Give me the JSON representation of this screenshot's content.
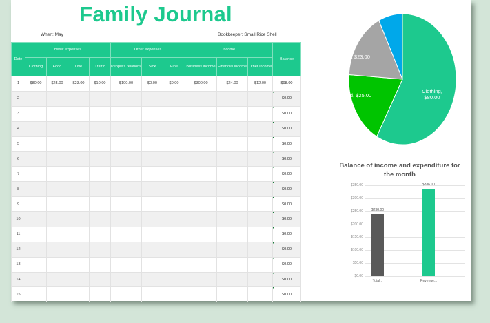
{
  "title": "Family Journal",
  "meta": {
    "when": "When: May",
    "bookkeeper": "Bookkeeper: Small Rice Shell"
  },
  "table": {
    "date_header": "Date",
    "groups": {
      "basic": "Basic expenses",
      "other": "Other expenses",
      "income": "Income"
    },
    "balance_header": "Balance",
    "columns": {
      "clothing": "Clothing",
      "food": "Food",
      "live": "Live",
      "traffic": "Traffic",
      "peoples_relations": "People's relations",
      "sick": "Sick",
      "fine": "Fine",
      "business_income": "Business income",
      "financial_income": "Financial income",
      "other_income": "Other income"
    },
    "rows": [
      {
        "date": "1",
        "clothing": "$80.00",
        "food": "$25.00",
        "live": "$23.00",
        "traffic": "$10.00",
        "peoples_relations": "$100.00",
        "sick": "$0.00",
        "fine": "$0.00",
        "business_income": "$300.00",
        "financial_income": "$24.00",
        "other_income": "$12.00",
        "balance": "$98.00"
      },
      {
        "date": "2",
        "balance": "$0.00"
      },
      {
        "date": "3",
        "balance": "$0.00"
      },
      {
        "date": "4",
        "balance": "$0.00"
      },
      {
        "date": "5",
        "balance": "$0.00"
      },
      {
        "date": "6",
        "balance": "$0.00"
      },
      {
        "date": "7",
        "balance": "$0.00"
      },
      {
        "date": "8",
        "balance": "$0.00"
      },
      {
        "date": "9",
        "balance": "$0.00"
      },
      {
        "date": "10",
        "balance": "$0.00"
      },
      {
        "date": "11",
        "balance": "$0.00"
      },
      {
        "date": "12",
        "balance": "$0.00"
      },
      {
        "date": "13",
        "balance": "$0.00"
      },
      {
        "date": "14",
        "balance": "$0.00"
      },
      {
        "date": "15",
        "balance": "$0.00"
      }
    ]
  },
  "colors": {
    "accent": "#1dc98e",
    "clothing": "#1dc98e",
    "food": "#00c400",
    "live": "#a5a5a5",
    "traffic": "#00a8ea",
    "total_bar": "#595959",
    "revenue_bar": "#1dc98e",
    "background": "#d3e5d8"
  },
  "chart_data": [
    {
      "type": "pie",
      "title": "",
      "categories": [
        "Clothing",
        "Food",
        "Live",
        "Traffic"
      ],
      "values": [
        80,
        25,
        23,
        10
      ],
      "labels": [
        "Clothing, $80.00",
        "Food, $25.00",
        "Live, $23.00",
        ""
      ],
      "colors": [
        "#1dc98e",
        "#00c400",
        "#a5a5a5",
        "#00a8ea"
      ]
    },
    {
      "type": "bar",
      "title": "Balance of income and expenditure for the month",
      "categories": [
        "Total...",
        "Revenue..."
      ],
      "values": [
        238,
        336
      ],
      "data_labels": [
        "$238.00",
        "$336.00"
      ],
      "xlabel": "",
      "ylabel": "",
      "ylim": [
        0,
        350
      ],
      "yticks": [
        "$0.00",
        "$50.00",
        "$100.00",
        "$150.00",
        "$200.00",
        "$250.00",
        "$300.00",
        "$350.00"
      ],
      "grid": true,
      "colors": [
        "#595959",
        "#1dc98e"
      ]
    }
  ]
}
